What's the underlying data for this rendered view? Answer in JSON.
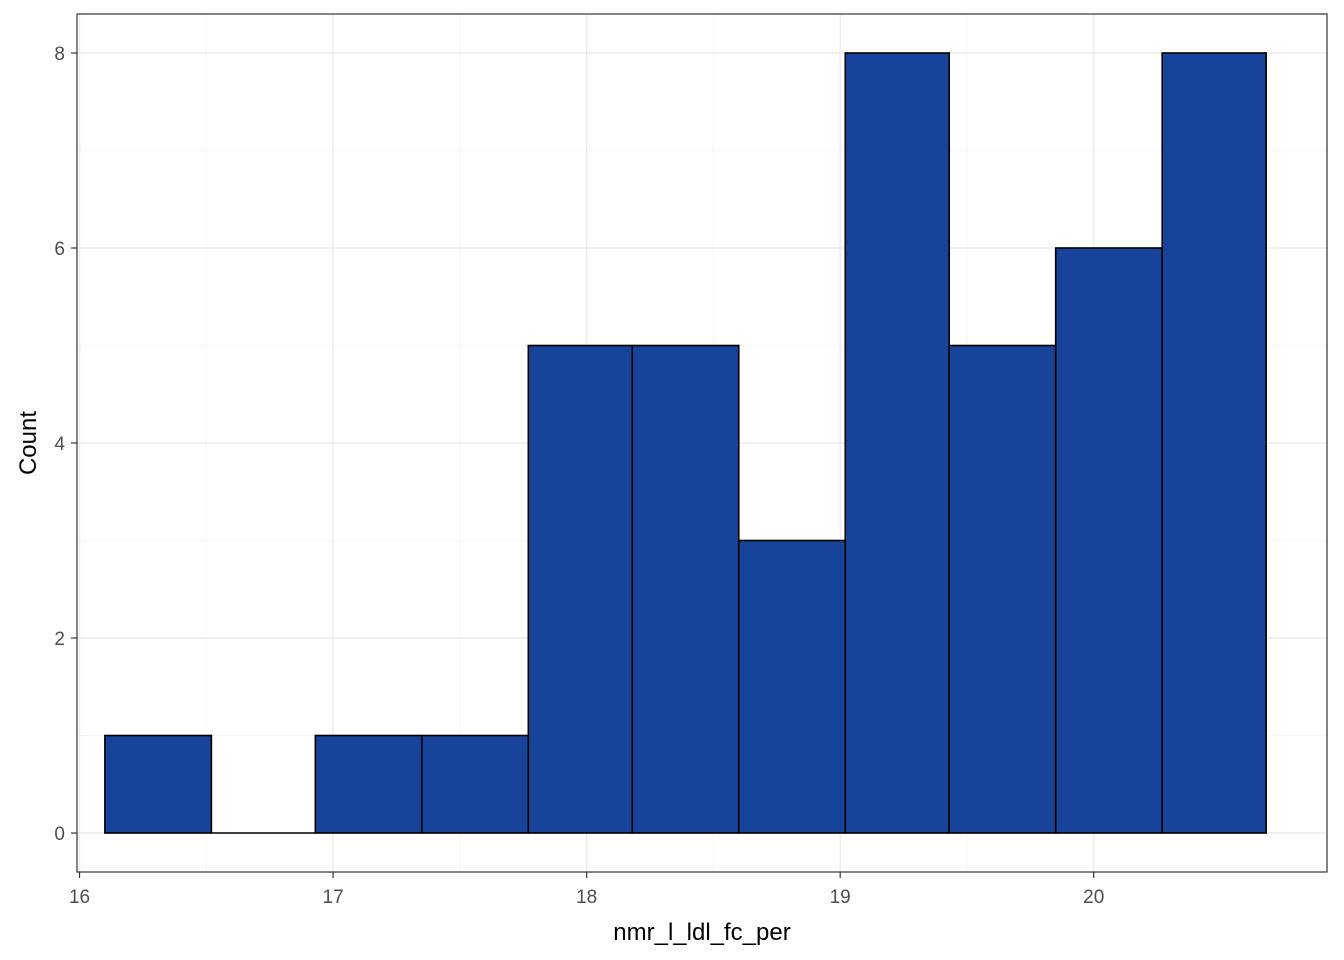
{
  "chart_data": {
    "type": "bar",
    "subtype": "histogram",
    "xlabel": "nmr_l_ldl_fc_per",
    "ylabel": "Count",
    "xlim": [
      15.99,
      20.92
    ],
    "ylim": [
      -0.4,
      8.4
    ],
    "x_ticks": [
      16,
      17,
      18,
      19,
      20
    ],
    "y_ticks": [
      0,
      2,
      4,
      6,
      8
    ],
    "grid": true,
    "bin_width": 0.4167,
    "bins": [
      {
        "start": 16.1,
        "end": 16.52,
        "count": 1
      },
      {
        "start": 16.52,
        "end": 16.93,
        "count": 0
      },
      {
        "start": 16.93,
        "end": 17.35,
        "count": 1
      },
      {
        "start": 17.35,
        "end": 17.77,
        "count": 1
      },
      {
        "start": 17.77,
        "end": 18.18,
        "count": 5
      },
      {
        "start": 18.18,
        "end": 18.6,
        "count": 5
      },
      {
        "start": 18.6,
        "end": 19.02,
        "count": 3
      },
      {
        "start": 19.02,
        "end": 19.43,
        "count": 8
      },
      {
        "start": 19.43,
        "end": 19.85,
        "count": 5
      },
      {
        "start": 19.85,
        "end": 20.27,
        "count": 6
      },
      {
        "start": 20.27,
        "end": 20.68,
        "count": 8
      }
    ],
    "colors": {
      "fill": "#18439a",
      "outline": "#000000",
      "grid_major": "#ebebeb",
      "grid_minor": "#f5f5f5",
      "panel_border": "#333333"
    }
  }
}
